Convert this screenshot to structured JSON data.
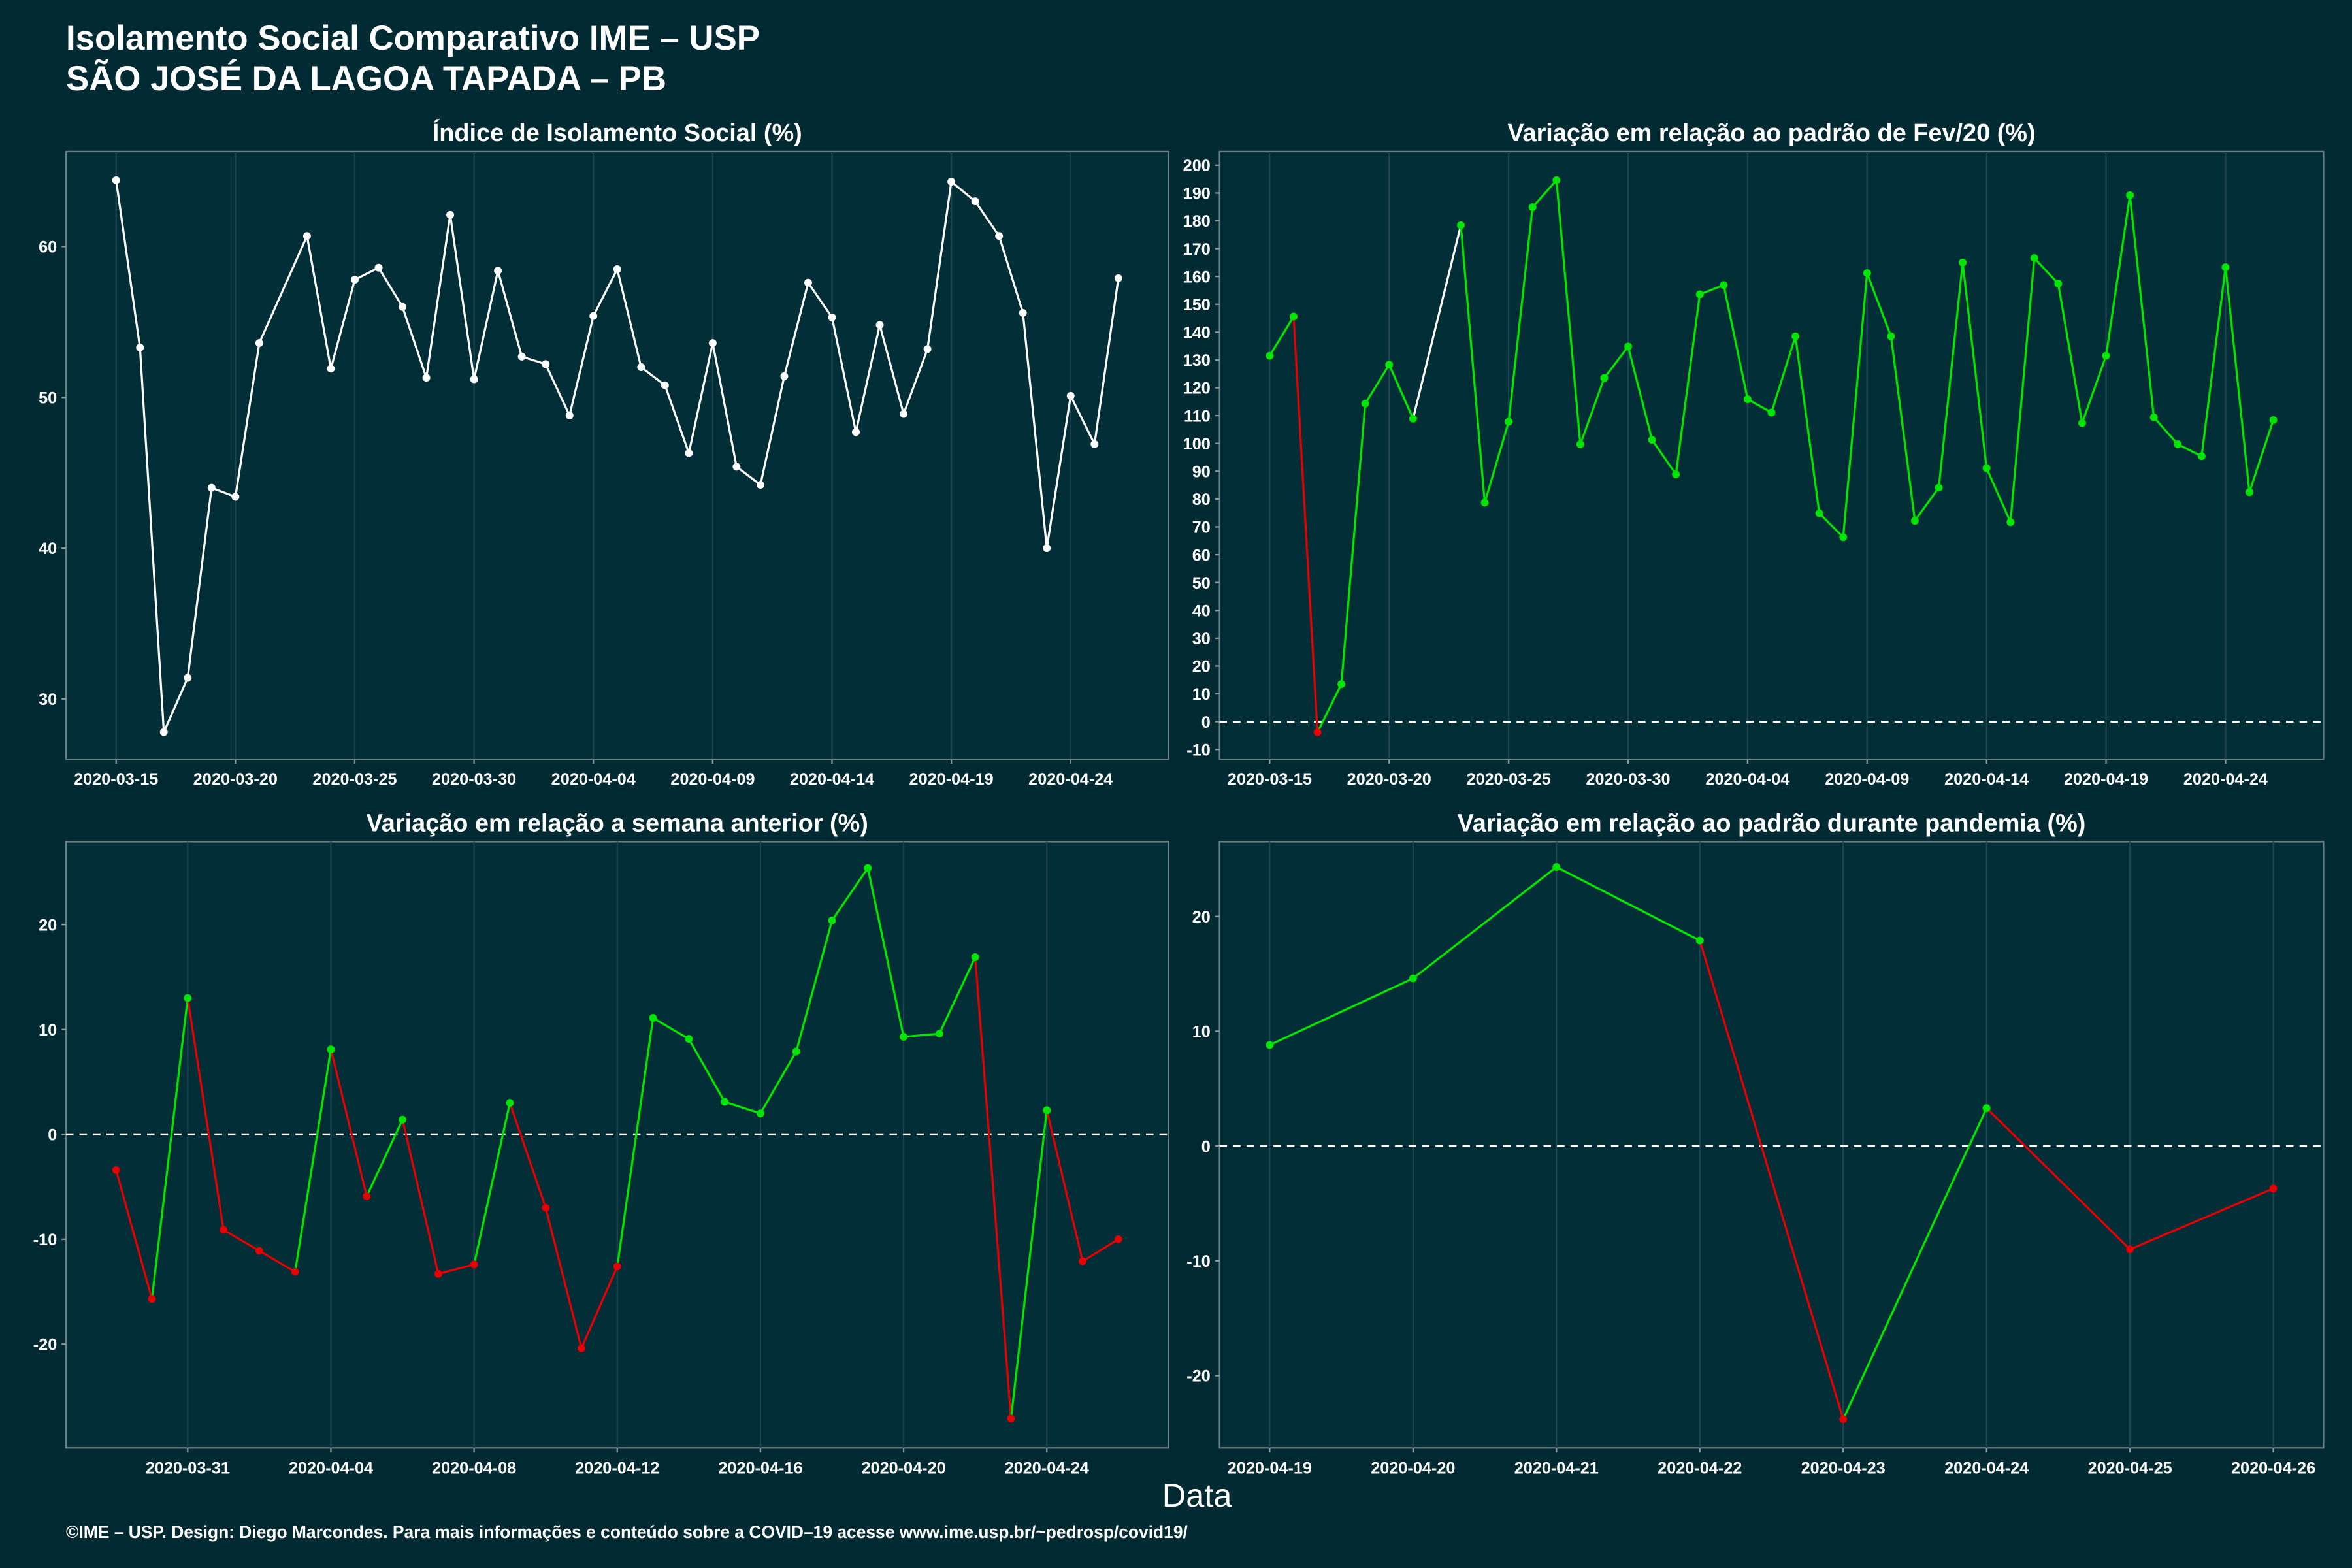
{
  "title": "Isolamento Social Comparativo IME – USP",
  "subtitle": "SÃO JOSÉ DA LAGOA TAPADA – PB",
  "xlabel": "Data",
  "footer": "©IME – USP. Design: Diego Marcondes. Para mais informações e conteúdo sobre a COVID–19 acesse www.ime.usp.br/~pedrosp/covid19/",
  "chart_data": [
    {
      "type": "line",
      "title": "Índice de Isolamento Social (%)",
      "line_color": "#ffffff",
      "grid": true,
      "x": [
        "2020-03-15",
        "2020-03-16",
        "2020-03-17",
        "2020-03-18",
        "2020-03-19",
        "2020-03-20",
        "2020-03-21",
        "2020-03-23",
        "2020-03-24",
        "2020-03-25",
        "2020-03-26",
        "2020-03-27",
        "2020-03-28",
        "2020-03-29",
        "2020-03-30",
        "2020-03-31",
        "2020-04-01",
        "2020-04-02",
        "2020-04-03",
        "2020-04-04",
        "2020-04-05",
        "2020-04-06",
        "2020-04-07",
        "2020-04-08",
        "2020-04-09",
        "2020-04-10",
        "2020-04-11",
        "2020-04-12",
        "2020-04-13",
        "2020-04-14",
        "2020-04-15",
        "2020-04-16",
        "2020-04-17",
        "2020-04-18",
        "2020-04-19",
        "2020-04-20",
        "2020-04-21",
        "2020-04-22",
        "2020-04-23",
        "2020-04-24",
        "2020-04-25",
        "2020-04-26"
      ],
      "values": [
        64.4,
        53.3,
        27.8,
        31.4,
        44.0,
        43.4,
        53.6,
        60.7,
        51.9,
        57.8,
        58.6,
        56.0,
        51.3,
        62.1,
        51.2,
        58.4,
        52.7,
        52.2,
        48.8,
        55.4,
        58.5,
        52.0,
        50.8,
        46.3,
        53.6,
        45.4,
        44.2,
        51.4,
        57.6,
        55.3,
        47.7,
        54.8,
        48.9,
        53.2,
        64.3,
        63.0,
        60.7,
        55.6,
        40.0,
        50.1,
        46.9,
        57.9
      ],
      "ylim": [
        26.0,
        66.3
      ],
      "yticks": [
        30,
        40,
        50,
        60
      ],
      "xticks": [
        "2020-03-15",
        "2020-03-20",
        "2020-03-25",
        "2020-03-30",
        "2020-04-04",
        "2020-04-09",
        "2020-04-14",
        "2020-04-19",
        "2020-04-24"
      ]
    },
    {
      "type": "line",
      "title": "Variação em relação ao padrão de Fev/20 (%)",
      "positive_color": "#00e600",
      "negative_color": "#e60000",
      "gap_color": "#ffffff",
      "zero_line": true,
      "grid": true,
      "x": [
        "2020-03-15",
        "2020-03-16",
        "2020-03-17",
        "2020-03-18",
        "2020-03-19",
        "2020-03-20",
        "2020-03-21",
        "2020-03-23",
        "2020-03-24",
        "2020-03-25",
        "2020-03-26",
        "2020-03-27",
        "2020-03-28",
        "2020-03-29",
        "2020-03-30",
        "2020-03-31",
        "2020-04-01",
        "2020-04-02",
        "2020-04-03",
        "2020-04-04",
        "2020-04-05",
        "2020-04-06",
        "2020-04-07",
        "2020-04-08",
        "2020-04-09",
        "2020-04-10",
        "2020-04-11",
        "2020-04-12",
        "2020-04-13",
        "2020-04-14",
        "2020-04-15",
        "2020-04-16",
        "2020-04-17",
        "2020-04-18",
        "2020-04-19",
        "2020-04-20",
        "2020-04-21",
        "2020-04-22",
        "2020-04-23",
        "2020-04-24",
        "2020-04-25",
        "2020-04-26"
      ],
      "values": [
        131.5,
        145.6,
        -3.8,
        13.5,
        114.3,
        128.3,
        108.9,
        178.4,
        78.7,
        107.8,
        184.9,
        194.6,
        99.7,
        123.5,
        134.8,
        101.3,
        88.9,
        153.6,
        156.9,
        115.9,
        111.1,
        138.5,
        74.9,
        66.3,
        161.2,
        138.5,
        72.2,
        84.1,
        165.0,
        91.1,
        71.7,
        166.6,
        157.4,
        107.3,
        131.5,
        189.2,
        109.4,
        99.7,
        95.4,
        163.3,
        82.5,
        108.4
      ],
      "ylim": [
        -13.5,
        204.9
      ],
      "yticks": [
        -10,
        0,
        10,
        20,
        30,
        40,
        50,
        60,
        70,
        80,
        90,
        100,
        110,
        120,
        130,
        140,
        150,
        160,
        170,
        180,
        190,
        200
      ],
      "xticks": [
        "2020-03-15",
        "2020-03-20",
        "2020-03-25",
        "2020-03-30",
        "2020-04-04",
        "2020-04-09",
        "2020-04-14",
        "2020-04-19",
        "2020-04-24"
      ]
    },
    {
      "type": "line",
      "title": "Variação em relação a semana anterior (%)",
      "positive_color": "#00e600",
      "negative_color": "#e60000",
      "zero_line": true,
      "grid": true,
      "x": [
        "2020-03-29",
        "2020-03-30",
        "2020-03-31",
        "2020-04-01",
        "2020-04-02",
        "2020-04-03",
        "2020-04-04",
        "2020-04-05",
        "2020-04-06",
        "2020-04-07",
        "2020-04-08",
        "2020-04-09",
        "2020-04-10",
        "2020-04-11",
        "2020-04-12",
        "2020-04-13",
        "2020-04-14",
        "2020-04-15",
        "2020-04-16",
        "2020-04-17",
        "2020-04-18",
        "2020-04-19",
        "2020-04-20",
        "2020-04-21",
        "2020-04-22",
        "2020-04-23",
        "2020-04-24",
        "2020-04-25",
        "2020-04-26"
      ],
      "values": [
        -3.4,
        -15.7,
        13.0,
        -9.1,
        -11.1,
        -13.1,
        8.1,
        -5.9,
        1.4,
        -13.3,
        -12.4,
        3.0,
        -7.0,
        -20.4,
        -12.6,
        11.1,
        9.1,
        3.1,
        2.0,
        7.9,
        20.4,
        25.4,
        9.3,
        9.6,
        16.9,
        -27.1,
        2.3,
        -12.1,
        -10.0
      ],
      "ylim": [
        -29.9,
        27.9
      ],
      "yticks": [
        -20,
        -10,
        0,
        10,
        20
      ],
      "xticks": [
        "2020-03-31",
        "2020-04-04",
        "2020-04-08",
        "2020-04-12",
        "2020-04-16",
        "2020-04-20",
        "2020-04-24"
      ]
    },
    {
      "type": "line",
      "title": "Variação em relação ao padrão durante pandemia (%)",
      "positive_color": "#00e600",
      "negative_color": "#e60000",
      "zero_line": true,
      "grid": true,
      "x": [
        "2020-04-19",
        "2020-04-20",
        "2020-04-21",
        "2020-04-22",
        "2020-04-23",
        "2020-04-24",
        "2020-04-25",
        "2020-04-26"
      ],
      "values": [
        8.8,
        14.6,
        24.3,
        17.9,
        -23.8,
        3.3,
        -9.0,
        -3.7
      ],
      "ylim": [
        -26.3,
        26.5
      ],
      "yticks": [
        -20,
        -10,
        0,
        10,
        20
      ],
      "xticks": [
        "2020-04-19",
        "2020-04-20",
        "2020-04-21",
        "2020-04-22",
        "2020-04-23",
        "2020-04-24",
        "2020-04-25",
        "2020-04-26"
      ]
    }
  ]
}
